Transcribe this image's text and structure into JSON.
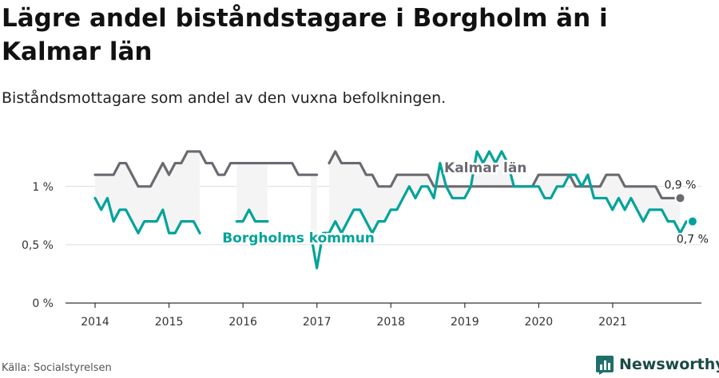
{
  "title": "Lägre andel biståndstagare i Borgholm än i Kalmar län",
  "subtitle": "Biståndsmottagare som andel av den vuxna befolkningen.",
  "source": "Källa: Socialstyrelsen",
  "brand": {
    "name": "Newsworthy",
    "icon": "newsworthy-bar-chart-logo",
    "color": "#1f6f6a"
  },
  "colors": {
    "kalmar": "#6b6a70",
    "borgholm": "#00a39a",
    "fill": "#f4f4f5",
    "grid": "#dcdcdc",
    "axis": "#333333"
  },
  "chart_data": {
    "type": "line",
    "ylim": [
      0,
      1.45
    ],
    "xlim": [
      2013.6,
      2022.2
    ],
    "yticks": [
      {
        "v": 0,
        "label": "0 %"
      },
      {
        "v": 0.5,
        "label": "0,5 %"
      },
      {
        "v": 1,
        "label": "1 %"
      }
    ],
    "xticks": [
      {
        "v": 2014,
        "label": "2014"
      },
      {
        "v": 2015,
        "label": "2015"
      },
      {
        "v": 2016,
        "label": "2016"
      },
      {
        "v": 2017,
        "label": "2017"
      },
      {
        "v": 2018,
        "label": "2018"
      },
      {
        "v": 2019,
        "label": "2019"
      },
      {
        "v": 2020,
        "label": "2020"
      },
      {
        "v": 2021,
        "label": "2021"
      }
    ],
    "grid": true,
    "x_start": 2014,
    "x_step": 0.0833,
    "series": [
      {
        "name": "Kalmar län",
        "end_label": "0,9 %",
        "values": [
          1.1,
          1.1,
          1.1,
          1.1,
          1.2,
          1.2,
          1.1,
          1.0,
          1.0,
          1.0,
          1.1,
          1.2,
          1.1,
          1.2,
          1.2,
          1.3,
          1.3,
          1.3,
          1.2,
          1.2,
          1.1,
          1.1,
          1.2,
          1.2,
          1.2,
          1.2,
          1.2,
          1.2,
          1.2,
          1.2,
          1.2,
          1.2,
          1.2,
          1.1,
          1.1,
          1.1,
          1.1,
          null,
          1.2,
          1.3,
          1.2,
          1.2,
          1.2,
          1.2,
          1.1,
          1.1,
          1.0,
          1.0,
          1.0,
          1.1,
          1.1,
          1.1,
          1.1,
          1.1,
          1.1,
          1.0,
          1.0,
          1.0,
          1.0,
          1.0,
          1.0,
          1.0,
          1.0,
          1.0,
          1.0,
          1.0,
          1.0,
          1.0,
          1.0,
          1.0,
          1.0,
          1.0,
          1.1,
          1.1,
          1.1,
          1.1,
          1.1,
          1.1,
          1.0,
          1.0,
          1.0,
          1.0,
          1.0,
          1.1,
          1.1,
          1.1,
          1.0,
          1.0,
          1.0,
          1.0,
          1.0,
          1.0,
          0.9,
          0.9,
          0.9,
          0.9
        ]
      },
      {
        "name": "Borgholms kommun",
        "end_label": "0,7 %",
        "values": [
          0.9,
          0.8,
          0.9,
          0.7,
          0.8,
          0.8,
          0.7,
          0.6,
          0.7,
          0.7,
          0.7,
          0.8,
          0.6,
          0.6,
          0.7,
          0.7,
          0.7,
          0.6,
          null,
          null,
          null,
          null,
          null,
          0.7,
          0.7,
          0.8,
          0.7,
          0.7,
          0.7,
          null,
          null,
          null,
          null,
          null,
          null,
          0.6,
          0.3,
          0.6,
          0.6,
          0.7,
          0.6,
          0.7,
          0.8,
          0.8,
          0.7,
          0.6,
          0.7,
          0.7,
          0.8,
          0.8,
          0.9,
          1.0,
          0.9,
          1.0,
          1.0,
          0.9,
          1.2,
          1.0,
          0.9,
          0.9,
          0.9,
          1.0,
          1.3,
          1.2,
          1.3,
          1.2,
          1.3,
          1.2,
          1.0,
          1.0,
          1.0,
          1.0,
          1.0,
          0.9,
          0.9,
          1.0,
          1.0,
          1.1,
          1.1,
          1.0,
          1.1,
          0.9,
          0.9,
          0.9,
          0.8,
          0.9,
          0.8,
          0.9,
          0.8,
          0.7,
          0.8,
          0.8,
          0.8,
          0.7,
          0.7,
          0.6,
          0.7,
          0.7
        ]
      }
    ],
    "annotations": [
      {
        "text": "Kalmar län",
        "x": 2019.28,
        "y": 1.12,
        "series": 0
      },
      {
        "text": "Borgholms kommun",
        "x": 2016.75,
        "y": 0.52,
        "series": 1
      }
    ]
  }
}
